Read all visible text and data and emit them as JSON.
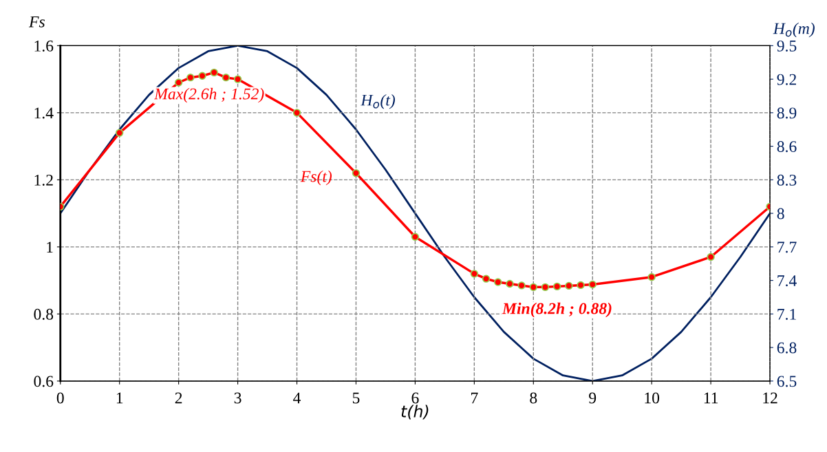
{
  "chart_data": {
    "type": "line",
    "xlabel": "t(h)",
    "ylabel": "Fs",
    "y2label": "H$_{o}$(m)",
    "xlim": [
      0,
      12
    ],
    "xticks": [
      0,
      1,
      2,
      3,
      4,
      5,
      6,
      7,
      8,
      9,
      10,
      11,
      12
    ],
    "ylim": [
      0.6,
      1.6
    ],
    "yticks": [
      0.6,
      0.8,
      1,
      1.2,
      1.4,
      1.6
    ],
    "y2lim": [
      6.5,
      9.5
    ],
    "y2ticks": [
      6.5,
      6.8,
      7.1,
      7.4,
      7.7,
      8,
      8.3,
      8.6,
      8.9,
      9.2,
      9.5
    ],
    "grid": true,
    "line_style": "solid",
    "series": [
      {
        "name": "Fs(t)",
        "color": "#ff0000",
        "marker": "circle",
        "x": [
          0,
          1,
          2,
          2.2,
          2.4,
          2.6,
          2.8,
          3,
          4,
          5,
          6,
          7,
          7.2,
          7.4,
          7.6,
          7.8,
          8,
          8.2,
          8.4,
          8.6,
          8.8,
          9,
          10,
          11,
          12
        ],
        "values": [
          1.12,
          1.34,
          1.49,
          1.505,
          1.51,
          1.52,
          1.505,
          1.5,
          1.4,
          1.22,
          1.03,
          0.92,
          0.905,
          0.895,
          0.89,
          0.885,
          0.88,
          0.88,
          0.882,
          0.884,
          0.886,
          0.888,
          0.91,
          0.97,
          1.12
        ]
      },
      {
        "name": "H$_{o}$(t)",
        "color": "#002060",
        "marker": "none",
        "axis": "y2",
        "x": [
          0,
          0.5,
          1,
          1.5,
          2,
          2.5,
          3,
          3.5,
          4,
          4.5,
          5,
          5.5,
          6,
          6.5,
          7,
          7.5,
          8,
          8.5,
          9,
          9.5,
          10,
          10.5,
          11,
          11.5,
          12
        ],
        "values": [
          8,
          8.39,
          8.75,
          9.06,
          9.3,
          9.45,
          9.5,
          9.45,
          9.3,
          9.06,
          8.75,
          8.39,
          8,
          7.61,
          7.25,
          6.94,
          6.7,
          6.55,
          6.5,
          6.55,
          6.7,
          6.94,
          7.25,
          7.61,
          8
        ]
      }
    ],
    "annotations": [
      {
        "text": "Max(2.6h ; 1.52)",
        "x": 2.6,
        "y": 1.52
      },
      {
        "text": "Min(8.2h ; 0.88)",
        "x": 8.2,
        "y": 0.88
      }
    ]
  }
}
